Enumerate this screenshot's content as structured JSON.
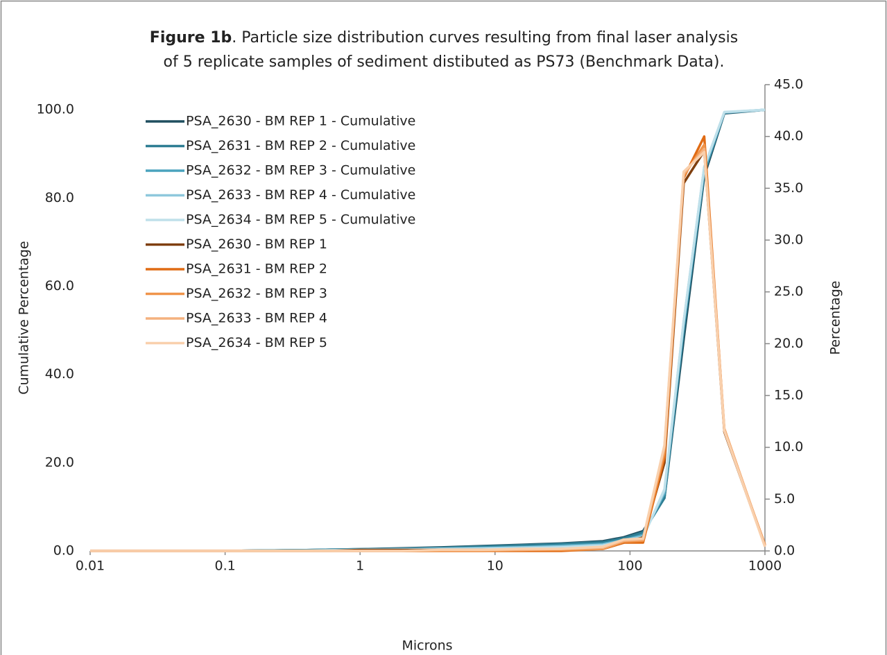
{
  "chart_data": {
    "type": "line",
    "title_label": "Figure 1b",
    "title_lines": [
      ".  Particle size distribution curves resulting from final laser analysis",
      "of 5 replicate samples of sediment distibuted as PS73 (Benchmark Data)."
    ],
    "xlabel": "Microns",
    "ylabel": "Cumulative Percentage",
    "y2label": "Percentage",
    "xscale": "log",
    "grid": false,
    "legend_position": "upper left",
    "xlim": [
      0.01,
      1000
    ],
    "xticks": [
      0.01,
      0.1,
      1,
      10,
      100,
      1000
    ],
    "ylim": [
      0,
      105.7
    ],
    "yticks": [
      {
        "value": 0,
        "label": "0.0"
      },
      {
        "value": 20,
        "label": "20.0"
      },
      {
        "value": 40,
        "label": "40.0"
      },
      {
        "value": 60,
        "label": "60.0"
      },
      {
        "value": 80,
        "label": "80.0"
      },
      {
        "value": 100,
        "label": "100.0"
      }
    ],
    "y2lim": [
      0,
      45
    ],
    "y2ticks": [
      {
        "value": 0,
        "label": "0.0"
      },
      {
        "value": 5,
        "label": "5.0"
      },
      {
        "value": 10,
        "label": "10.0"
      },
      {
        "value": 15,
        "label": "15.0"
      },
      {
        "value": 20,
        "label": "20.0"
      },
      {
        "value": 25,
        "label": "25.0"
      },
      {
        "value": 30,
        "label": "30.0"
      },
      {
        "value": 35,
        "label": "35.0"
      },
      {
        "value": 40,
        "label": "40.0"
      },
      {
        "value": 45,
        "label": "45.0"
      }
    ],
    "x": [
      0.01,
      0.1,
      0.2,
      0.4,
      0.6,
      1,
      2,
      4,
      8,
      16,
      31,
      63,
      90,
      125,
      180,
      250,
      355,
      500,
      1000
    ],
    "series": [
      {
        "name": "PSA_2630 - BM REP 1 - Cumulative",
        "color": "#1f4e5f",
        "values": [
          0,
          0,
          0.1,
          0.2,
          0.3,
          0.4,
          0.6,
          0.8,
          1.1,
          1.4,
          1.7,
          2.2,
          3.1,
          4.5,
          12,
          48,
          85,
          99.2,
          100
        ]
      },
      {
        "name": "PSA_2631 - BM REP 2 - Cumulative",
        "color": "#2e7d93",
        "values": [
          0,
          0,
          0.1,
          0.2,
          0.3,
          0.4,
          0.5,
          0.7,
          1.0,
          1.3,
          1.6,
          2.0,
          2.9,
          4.2,
          12,
          50,
          86,
          99.3,
          100
        ]
      },
      {
        "name": "PSA_2632 - BM REP 3 - Cumulative",
        "color": "#4aa3bd",
        "values": [
          0,
          0,
          0.1,
          0.1,
          0.2,
          0.3,
          0.4,
          0.5,
          0.7,
          0.9,
          1.2,
          1.6,
          2.5,
          3.6,
          13,
          51,
          86,
          99.4,
          100
        ]
      },
      {
        "name": "PSA_2633 - BM REP 4 - Cumulative",
        "color": "#8ec8dc",
        "values": [
          0,
          0,
          0,
          0.1,
          0.2,
          0.3,
          0.4,
          0.5,
          0.6,
          0.8,
          1.0,
          1.4,
          2.4,
          3.3,
          13.5,
          52,
          87,
          99.4,
          100
        ]
      },
      {
        "name": "PSA_2634 - BM REP 5 - Cumulative",
        "color": "#bfe0ea",
        "values": [
          0,
          0,
          0,
          0.1,
          0.1,
          0.2,
          0.3,
          0.4,
          0.5,
          0.6,
          0.8,
          1.2,
          2.2,
          3.0,
          14,
          52,
          87,
          99.5,
          100
        ]
      },
      {
        "name": "PSA_2630 - BM REP 1",
        "color": "#7f3f0f",
        "axis": "y2",
        "values": [
          0,
          0,
          0,
          0,
          0,
          0.1,
          0.1,
          0.1,
          0.1,
          0.1,
          0.1,
          0.2,
          0.8,
          1.3,
          8.5,
          35.5,
          38.6,
          11.5,
          0.5
        ]
      },
      {
        "name": "PSA_2631 - BM REP 2",
        "color": "#e06b14",
        "axis": "y2",
        "values": [
          0,
          0,
          0,
          0,
          0,
          0,
          0,
          0,
          0,
          0,
          0,
          0.2,
          0.8,
          0.8,
          9,
          36,
          40,
          11.6,
          0.6
        ]
      },
      {
        "name": "PSA_2632 - BM REP 3",
        "color": "#f0944a",
        "axis": "y2",
        "values": [
          0,
          0,
          0,
          0,
          0,
          0,
          0,
          0,
          0,
          0.1,
          0.1,
          0.2,
          0.9,
          1.0,
          9.5,
          36.2,
          39.2,
          11.8,
          0.5
        ]
      },
      {
        "name": "PSA_2633 - BM REP 4",
        "color": "#f4b17e",
        "axis": "y2",
        "values": [
          0,
          0,
          0,
          0,
          0,
          0,
          0,
          0.1,
          0.1,
          0.1,
          0.2,
          0.3,
          1.0,
          1.1,
          10,
          36.4,
          38.8,
          11.7,
          0.5
        ]
      },
      {
        "name": "PSA_2634 - BM REP 5",
        "color": "#f9d0ad",
        "axis": "y2",
        "values": [
          0,
          0,
          0,
          0,
          0,
          0,
          0,
          0.1,
          0.1,
          0.2,
          0.2,
          0.4,
          1.1,
          1.2,
          10.2,
          36.6,
          38.5,
          11.6,
          0.4
        ]
      }
    ]
  }
}
